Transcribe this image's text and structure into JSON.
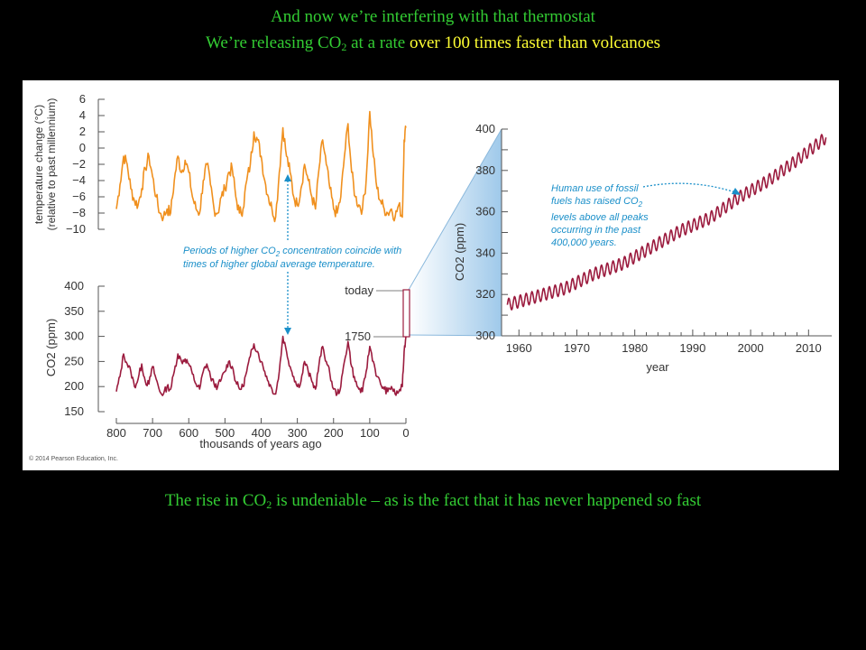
{
  "slide": {
    "title": "And now we’re interfering with that thermostat",
    "subtitle": {
      "part1": "We’re releasing CO",
      "sub": "2",
      "part2": " at a rate ",
      "highlight": "over 100 times faster than volcanoes"
    },
    "caption": {
      "part1": "The rise in CO",
      "sub": "2",
      "part2": " is undeniable – as is the fact that it has never happened so fast"
    }
  },
  "figure": {
    "credit": "© 2014 Pearson Education, Inc.",
    "annotation_left": {
      "line1a": "Periods of higher CO",
      "line1sub": "2",
      "line1b": " concentration coincide with",
      "line2": "times of higher global average temperature."
    },
    "annotation_right": {
      "line1": "Human use of fossil",
      "line2a": "fuels has raised CO",
      "line2sub": "2",
      "line3": "levels above all peaks",
      "line4": "occurring in the past",
      "line5": "400,000 years."
    },
    "label_today": "today",
    "label_1750": "1750"
  },
  "colors": {
    "temperature": "#f0901e",
    "co2": "#9b1b3e",
    "annotation": "#1a8fc9",
    "highlight_text": "#ffff33",
    "body_text": "#33cc33"
  },
  "chart_data": [
    {
      "type": "line",
      "ylabel_line1": "temperature change (°C)",
      "ylabel_line2": "(relative to past millennium)",
      "xlabel": "",
      "ylim": [
        -10,
        6
      ],
      "yticks": [
        "6",
        "4",
        "2",
        "0",
        "−2",
        "−4",
        "−6",
        "−8",
        "−10"
      ],
      "xlim": [
        800,
        0
      ],
      "x": [
        800,
        790,
        780,
        770,
        760,
        750,
        740,
        730,
        720,
        710,
        700,
        690,
        680,
        670,
        660,
        650,
        640,
        630,
        620,
        610,
        600,
        590,
        580,
        570,
        560,
        550,
        540,
        530,
        520,
        510,
        500,
        490,
        480,
        470,
        460,
        450,
        440,
        430,
        420,
        410,
        400,
        390,
        380,
        370,
        360,
        350,
        340,
        330,
        320,
        310,
        300,
        290,
        280,
        270,
        260,
        250,
        240,
        230,
        220,
        210,
        200,
        190,
        180,
        170,
        160,
        150,
        140,
        130,
        120,
        110,
        100,
        90,
        80,
        70,
        60,
        50,
        40,
        30,
        20,
        10,
        5,
        0
      ],
      "series": [
        {
          "values": [
            -7.5,
            -4.5,
            -1,
            -2,
            -5,
            -6.5,
            -7,
            -5,
            -2.5,
            -1,
            -3.5,
            -6,
            -8,
            -8.5,
            -7.5,
            -8,
            -4,
            -1,
            -3,
            -1.5,
            -3,
            -6,
            -7.5,
            -8,
            -4,
            -2,
            -4.5,
            -7.5,
            -8,
            -6,
            -5,
            -3,
            -2.5,
            -6,
            -8,
            -7.5,
            -4,
            -2,
            2,
            1,
            -1,
            -4,
            -6,
            -7.5,
            -8.5,
            -3,
            2.5,
            -1,
            -3,
            -6,
            -7,
            -5,
            -2,
            -4,
            -6,
            -7.5,
            -2.5,
            1,
            -2,
            -5,
            -7.5,
            -8,
            -6,
            -1,
            3,
            -3,
            -6,
            -7,
            -7.5,
            -4,
            4.5,
            -1,
            -5,
            -6.5,
            -7.5,
            -8,
            -7.5,
            -8.5,
            -7,
            -8.5,
            1,
            2.5
          ]
        }
      ]
    },
    {
      "type": "line",
      "ylabel": "CO2 (ppm)",
      "xlabel": "thousands of years ago",
      "ylim": [
        150,
        400
      ],
      "yticks": [
        "400",
        "350",
        "300",
        "250",
        "200",
        "150"
      ],
      "xticks": [
        "800",
        "700",
        "600",
        "500",
        "400",
        "300",
        "200",
        "100",
        "0"
      ],
      "xlim": [
        800,
        0
      ],
      "x": [
        800,
        790,
        780,
        770,
        760,
        750,
        740,
        730,
        720,
        710,
        700,
        690,
        680,
        670,
        660,
        650,
        640,
        630,
        620,
        610,
        600,
        590,
        580,
        570,
        560,
        550,
        540,
        530,
        520,
        510,
        500,
        490,
        480,
        470,
        460,
        450,
        440,
        430,
        420,
        410,
        400,
        390,
        380,
        370,
        360,
        350,
        340,
        330,
        320,
        310,
        300,
        290,
        280,
        270,
        260,
        250,
        240,
        230,
        220,
        210,
        200,
        190,
        180,
        170,
        160,
        150,
        140,
        130,
        120,
        110,
        100,
        90,
        80,
        70,
        60,
        50,
        40,
        30,
        20,
        10,
        5,
        0
      ],
      "series": [
        {
          "values": [
            190,
            220,
            265,
            245,
            230,
            200,
            215,
            245,
            210,
            205,
            240,
            215,
            190,
            185,
            200,
            195,
            230,
            265,
            250,
            255,
            245,
            225,
            205,
            195,
            230,
            245,
            220,
            205,
            200,
            215,
            230,
            250,
            240,
            210,
            195,
            200,
            230,
            260,
            285,
            270,
            250,
            230,
            210,
            195,
            185,
            230,
            300,
            270,
            240,
            220,
            200,
            210,
            250,
            230,
            210,
            195,
            245,
            280,
            250,
            225,
            195,
            185,
            200,
            250,
            290,
            240,
            210,
            195,
            190,
            230,
            280,
            250,
            220,
            205,
            195,
            190,
            200,
            185,
            190,
            200,
            270,
            300
          ]
        }
      ]
    },
    {
      "type": "line",
      "ylabel": "CO2 (ppm)",
      "xlabel": "year",
      "ylim": [
        300,
        400
      ],
      "yticks": [
        "400",
        "380",
        "360",
        "340",
        "320",
        "300"
      ],
      "xticks": [
        "1960",
        "1970",
        "1980",
        "1990",
        "2000",
        "2010"
      ],
      "xlim": [
        1957,
        2014
      ],
      "x": [
        1958,
        1963,
        1968,
        1973,
        1978,
        1983,
        1988,
        1993,
        1998,
        2003,
        2008,
        2013
      ],
      "series": [
        {
          "values": [
            315,
            319,
            323,
            330,
            335,
            343,
            351,
            357,
            367,
            375,
            385,
            396
          ],
          "seasonal_amplitude_ppm": 3
        }
      ]
    }
  ]
}
